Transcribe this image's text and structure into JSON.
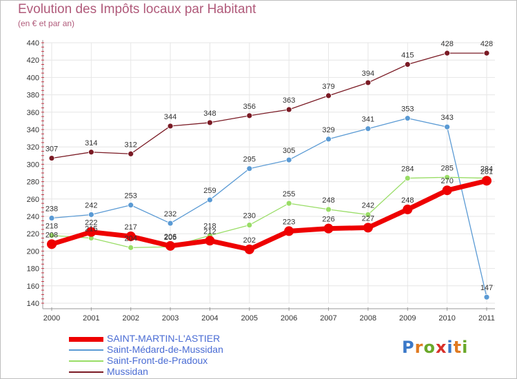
{
  "title": "Evolution des Impôts locaux par Habitant",
  "subtitle": "(en € et par an)",
  "logo": {
    "text": "Proxiti",
    "letter_colors": [
      "#3a78c8",
      "#e07a20",
      "#6aa82a",
      "#d8302a",
      "#3a78c8",
      "#e07a20",
      "#6aa82a"
    ]
  },
  "chart_data": {
    "type": "line",
    "title": "Evolution des Impôts locaux par Habitant",
    "subtitle": "(en € et par an)",
    "xlabel": "",
    "ylabel": "",
    "ylim": [
      140,
      440
    ],
    "yticks": [
      "140",
      "160",
      "180",
      "200",
      "220",
      "240",
      "260",
      "280",
      "300",
      "320",
      "340",
      "360",
      "380",
      "400",
      "420",
      "440"
    ],
    "categories": [
      "2000",
      "2001",
      "2002",
      "2003",
      "2004",
      "2005",
      "2006",
      "2007",
      "2008",
      "2009",
      "2010",
      "2011"
    ],
    "grid": true,
    "legend_position": "bottom-left",
    "series": [
      {
        "name": "Mussidan",
        "color": "#7a1a24",
        "width": 1.3,
        "marker": 4,
        "values": [
          307,
          314,
          312,
          344,
          348,
          356,
          363,
          379,
          394,
          415,
          428,
          428
        ],
        "labels": [
          "307",
          "314",
          "312",
          "344",
          "348",
          "356",
          "363",
          "379",
          "394",
          "415",
          "428",
          "428"
        ]
      },
      {
        "name": "Saint-Médard-de-Mussidan",
        "color": "#5a9ad4",
        "width": 1.3,
        "marker": 4,
        "values": [
          238,
          242,
          253,
          232,
          259,
          295,
          305,
          329,
          341,
          353,
          343,
          147
        ],
        "labels": [
          "238",
          "242",
          "253",
          "232",
          "259",
          "295",
          "305",
          "329",
          "341",
          "353",
          "343",
          "147"
        ]
      },
      {
        "name": "Saint-Front-de-Pradoux",
        "color": "#99dd66",
        "width": 1.3,
        "marker": 4,
        "values": [
          218,
          215,
          204,
          205,
          218,
          230,
          255,
          248,
          242,
          284,
          285,
          284
        ],
        "labels": [
          "218",
          "215",
          "204",
          "205",
          "218",
          "230",
          "255",
          "248",
          "242",
          "284",
          "285",
          "284"
        ]
      },
      {
        "name": "SAINT-MARTIN-L'ASTIER",
        "color": "#ee0000",
        "width": 7,
        "marker": 7,
        "values": [
          208,
          222,
          217,
          206,
          212,
          202,
          223,
          226,
          227,
          248,
          270,
          281
        ],
        "labels": [
          "208",
          "222",
          "217",
          "206",
          "212",
          "202",
          "223",
          "226",
          "227",
          "248",
          "270",
          "281"
        ]
      }
    ]
  },
  "legend": {
    "items": [
      {
        "label": "SAINT-MARTIN-L'ASTIER",
        "color": "#ee0000",
        "thickness": 7
      },
      {
        "label": "Saint-Médard-de-Mussidan",
        "color": "#5a9ad4",
        "thickness": 2
      },
      {
        "label": "Saint-Front-de-Pradoux",
        "color": "#99dd66",
        "thickness": 2
      },
      {
        "label": "Mussidan",
        "color": "#7a1a24",
        "thickness": 2
      }
    ]
  }
}
